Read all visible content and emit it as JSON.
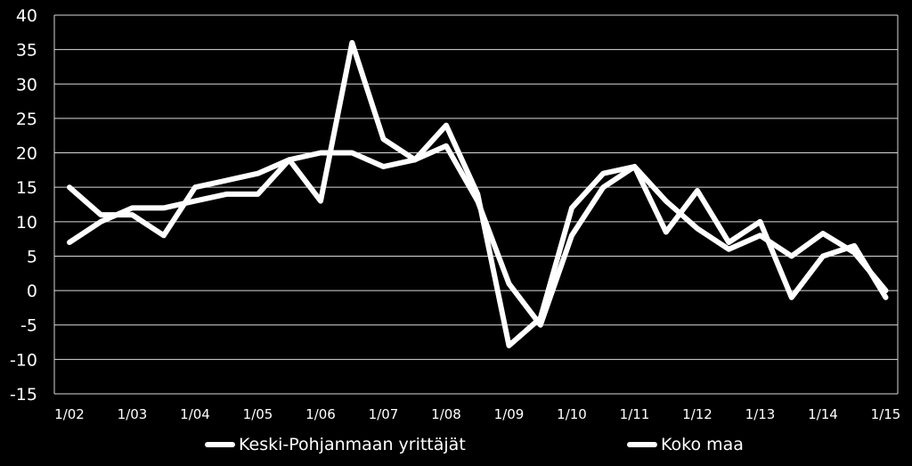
{
  "chart_data": {
    "type": "line",
    "title": "",
    "xlabel": "",
    "ylabel": "",
    "ylim": [
      -15,
      40
    ],
    "y_ticks": [
      40,
      35,
      30,
      25,
      20,
      15,
      10,
      5,
      0,
      -5,
      -10,
      -15
    ],
    "y_tick_labels": [
      "40",
      "35",
      "30",
      "25",
      "20",
      "15",
      "10",
      "5",
      "0",
      "-5",
      "-10",
      "-15"
    ],
    "x_tick_labels": [
      "1/02",
      "1/03",
      "1/04",
      "1/05",
      "1/06",
      "1/07",
      "1/08",
      "1/09",
      "1/10",
      "1/11",
      "1/12",
      "1/13",
      "1/14",
      "1/15"
    ],
    "x_step": 0.5,
    "grid": true,
    "legend_position": "bottom",
    "background": "#000000",
    "line_color": "#ffffff",
    "series": [
      {
        "name": "Keski-Pohjanmaan yrittäjät",
        "values": [
          15,
          11,
          11,
          8,
          15,
          16,
          17,
          19,
          13,
          36,
          22,
          19,
          24,
          14,
          -8,
          -4,
          12,
          17,
          18,
          8.5,
          14.5,
          7,
          10,
          -1,
          5,
          6.5,
          -1
        ]
      },
      {
        "name": "Koko maa",
        "values": [
          7,
          10,
          12,
          12,
          13,
          14,
          14,
          19,
          20,
          20,
          18,
          19,
          21,
          13,
          1,
          -5,
          8,
          15,
          18,
          13,
          9,
          6,
          8,
          5,
          8.3,
          5.5,
          0
        ]
      }
    ]
  }
}
